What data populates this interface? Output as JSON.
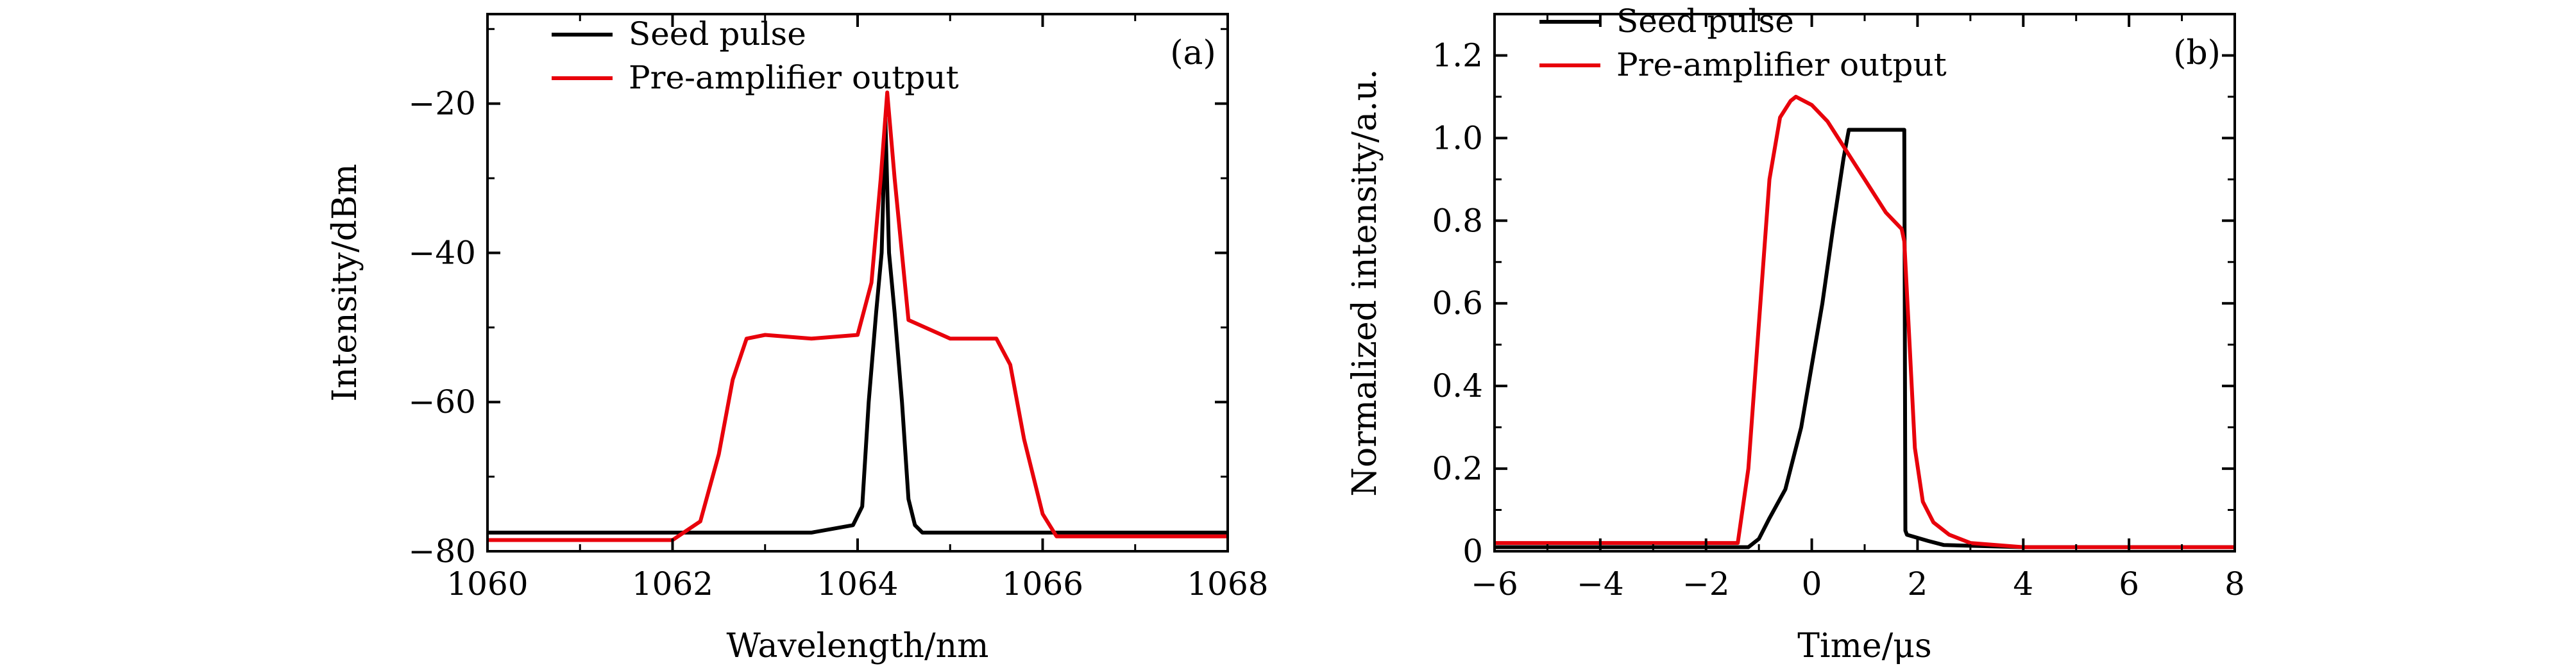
{
  "chart_data": [
    {
      "panel_label": "(a)",
      "type": "line",
      "xlabel": "Wavelength/nm",
      "ylabel": "Intensity/dBm",
      "xlim": [
        1060,
        1068
      ],
      "ylim": [
        -80,
        -8
      ],
      "xticks": [
        1060,
        1062,
        1064,
        1066,
        1068
      ],
      "yticks": [
        -80,
        -60,
        -40,
        -20
      ],
      "xtick_labels": [
        "1060",
        "1062",
        "1064",
        "1066",
        "1068"
      ],
      "ytick_labels": [
        "−80",
        "−60",
        "−40",
        "−20"
      ],
      "legend_position": "top-left",
      "series": [
        {
          "name": "Seed pulse",
          "color": "#000000",
          "x": [
            1060.0,
            1062.0,
            1063.5,
            1063.95,
            1064.05,
            1064.12,
            1064.2,
            1064.26,
            1064.3,
            1064.34,
            1064.4,
            1064.48,
            1064.55,
            1064.62,
            1064.7,
            1065.0,
            1066.0,
            1068.0
          ],
          "y": [
            -77.5,
            -77.5,
            -77.5,
            -76.5,
            -74,
            -60,
            -48,
            -40,
            -22,
            -40,
            -48,
            -60,
            -73,
            -76.5,
            -77.5,
            -77.5,
            -77.5,
            -77.5
          ]
        },
        {
          "name": "Pre-amplifier output",
          "color": "#e8000b",
          "x": [
            1060.0,
            1062.0,
            1062.3,
            1062.5,
            1062.65,
            1062.8,
            1063.0,
            1063.5,
            1064.0,
            1064.15,
            1064.25,
            1064.32,
            1064.4,
            1064.55,
            1065.0,
            1065.5,
            1065.65,
            1065.8,
            1066.0,
            1066.15,
            1068.0
          ],
          "y": [
            -78.5,
            -78.5,
            -76,
            -67,
            -57,
            -51.5,
            -51,
            -51.5,
            -51,
            -44,
            -30,
            -18.5,
            -30,
            -49,
            -51.5,
            -51.5,
            -55,
            -65,
            -75,
            -78,
            -78
          ]
        }
      ]
    },
    {
      "panel_label": "(b)",
      "type": "line",
      "xlabel": "Time/μs",
      "ylabel": "Normalized intensity/a.u.",
      "xlim": [
        -6,
        8
      ],
      "ylim": [
        0,
        1.3
      ],
      "xticks": [
        -6,
        -4,
        -2,
        0,
        2,
        4,
        6,
        8
      ],
      "yticks": [
        0,
        0.2,
        0.4,
        0.6,
        0.8,
        1.0,
        1.2
      ],
      "xtick_labels": [
        "−6",
        "−4",
        "−2",
        "0",
        "2",
        "4",
        "6",
        "8"
      ],
      "ytick_labels": [
        "0",
        "0.2",
        "0.4",
        "0.6",
        "0.8",
        "1.0",
        "1.2"
      ],
      "legend_position": "top-left",
      "series": [
        {
          "name": "Seed pulse",
          "color": "#000000",
          "x": [
            -6,
            -1.2,
            -1.0,
            -0.8,
            -0.5,
            -0.2,
            0.0,
            0.2,
            0.4,
            0.6,
            0.7,
            1.0,
            1.4,
            1.75,
            1.77,
            1.8,
            2.2,
            2.5,
            4,
            6,
            8
          ],
          "y": [
            0.01,
            0.01,
            0.03,
            0.08,
            0.15,
            0.3,
            0.45,
            0.6,
            0.78,
            0.95,
            1.02,
            1.02,
            1.02,
            1.02,
            0.05,
            0.04,
            0.025,
            0.015,
            0.01,
            0.01,
            0.01
          ]
        },
        {
          "name": "Pre-amplifier output",
          "color": "#e8000b",
          "x": [
            -6,
            -1.4,
            -1.2,
            -1.0,
            -0.8,
            -0.6,
            -0.4,
            -0.3,
            0.0,
            0.3,
            0.6,
            1.0,
            1.4,
            1.7,
            1.75,
            1.85,
            1.95,
            2.1,
            2.3,
            2.6,
            3.0,
            4,
            8
          ],
          "y": [
            0.02,
            0.02,
            0.2,
            0.55,
            0.9,
            1.05,
            1.09,
            1.1,
            1.08,
            1.04,
            0.98,
            0.9,
            0.82,
            0.78,
            0.75,
            0.5,
            0.25,
            0.12,
            0.07,
            0.04,
            0.02,
            0.01,
            0.01
          ]
        }
      ]
    }
  ]
}
